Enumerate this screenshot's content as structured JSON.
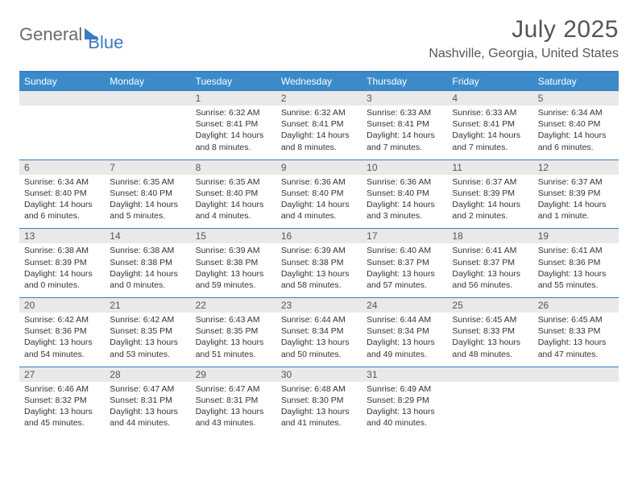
{
  "brand": {
    "part1": "General",
    "part2": "Blue"
  },
  "title": {
    "month": "July 2025",
    "location": "Nashville, Georgia, United States"
  },
  "colors": {
    "accent": "#3a7bbf",
    "header_bg": "#3b8bca",
    "daynum_bg": "#e9e9e9",
    "text": "#333333",
    "muted": "#555555"
  },
  "day_headers": [
    "Sunday",
    "Monday",
    "Tuesday",
    "Wednesday",
    "Thursday",
    "Friday",
    "Saturday"
  ],
  "weeks": [
    [
      null,
      null,
      {
        "n": "1",
        "sr": "Sunrise: 6:32 AM",
        "ss": "Sunset: 8:41 PM",
        "d1": "Daylight: 14 hours",
        "d2": "and 8 minutes."
      },
      {
        "n": "2",
        "sr": "Sunrise: 6:32 AM",
        "ss": "Sunset: 8:41 PM",
        "d1": "Daylight: 14 hours",
        "d2": "and 8 minutes."
      },
      {
        "n": "3",
        "sr": "Sunrise: 6:33 AM",
        "ss": "Sunset: 8:41 PM",
        "d1": "Daylight: 14 hours",
        "d2": "and 7 minutes."
      },
      {
        "n": "4",
        "sr": "Sunrise: 6:33 AM",
        "ss": "Sunset: 8:41 PM",
        "d1": "Daylight: 14 hours",
        "d2": "and 7 minutes."
      },
      {
        "n": "5",
        "sr": "Sunrise: 6:34 AM",
        "ss": "Sunset: 8:40 PM",
        "d1": "Daylight: 14 hours",
        "d2": "and 6 minutes."
      }
    ],
    [
      {
        "n": "6",
        "sr": "Sunrise: 6:34 AM",
        "ss": "Sunset: 8:40 PM",
        "d1": "Daylight: 14 hours",
        "d2": "and 6 minutes."
      },
      {
        "n": "7",
        "sr": "Sunrise: 6:35 AM",
        "ss": "Sunset: 8:40 PM",
        "d1": "Daylight: 14 hours",
        "d2": "and 5 minutes."
      },
      {
        "n": "8",
        "sr": "Sunrise: 6:35 AM",
        "ss": "Sunset: 8:40 PM",
        "d1": "Daylight: 14 hours",
        "d2": "and 4 minutes."
      },
      {
        "n": "9",
        "sr": "Sunrise: 6:36 AM",
        "ss": "Sunset: 8:40 PM",
        "d1": "Daylight: 14 hours",
        "d2": "and 4 minutes."
      },
      {
        "n": "10",
        "sr": "Sunrise: 6:36 AM",
        "ss": "Sunset: 8:40 PM",
        "d1": "Daylight: 14 hours",
        "d2": "and 3 minutes."
      },
      {
        "n": "11",
        "sr": "Sunrise: 6:37 AM",
        "ss": "Sunset: 8:39 PM",
        "d1": "Daylight: 14 hours",
        "d2": "and 2 minutes."
      },
      {
        "n": "12",
        "sr": "Sunrise: 6:37 AM",
        "ss": "Sunset: 8:39 PM",
        "d1": "Daylight: 14 hours",
        "d2": "and 1 minute."
      }
    ],
    [
      {
        "n": "13",
        "sr": "Sunrise: 6:38 AM",
        "ss": "Sunset: 8:39 PM",
        "d1": "Daylight: 14 hours",
        "d2": "and 0 minutes."
      },
      {
        "n": "14",
        "sr": "Sunrise: 6:38 AM",
        "ss": "Sunset: 8:38 PM",
        "d1": "Daylight: 14 hours",
        "d2": "and 0 minutes."
      },
      {
        "n": "15",
        "sr": "Sunrise: 6:39 AM",
        "ss": "Sunset: 8:38 PM",
        "d1": "Daylight: 13 hours",
        "d2": "and 59 minutes."
      },
      {
        "n": "16",
        "sr": "Sunrise: 6:39 AM",
        "ss": "Sunset: 8:38 PM",
        "d1": "Daylight: 13 hours",
        "d2": "and 58 minutes."
      },
      {
        "n": "17",
        "sr": "Sunrise: 6:40 AM",
        "ss": "Sunset: 8:37 PM",
        "d1": "Daylight: 13 hours",
        "d2": "and 57 minutes."
      },
      {
        "n": "18",
        "sr": "Sunrise: 6:41 AM",
        "ss": "Sunset: 8:37 PM",
        "d1": "Daylight: 13 hours",
        "d2": "and 56 minutes."
      },
      {
        "n": "19",
        "sr": "Sunrise: 6:41 AM",
        "ss": "Sunset: 8:36 PM",
        "d1": "Daylight: 13 hours",
        "d2": "and 55 minutes."
      }
    ],
    [
      {
        "n": "20",
        "sr": "Sunrise: 6:42 AM",
        "ss": "Sunset: 8:36 PM",
        "d1": "Daylight: 13 hours",
        "d2": "and 54 minutes."
      },
      {
        "n": "21",
        "sr": "Sunrise: 6:42 AM",
        "ss": "Sunset: 8:35 PM",
        "d1": "Daylight: 13 hours",
        "d2": "and 53 minutes."
      },
      {
        "n": "22",
        "sr": "Sunrise: 6:43 AM",
        "ss": "Sunset: 8:35 PM",
        "d1": "Daylight: 13 hours",
        "d2": "and 51 minutes."
      },
      {
        "n": "23",
        "sr": "Sunrise: 6:44 AM",
        "ss": "Sunset: 8:34 PM",
        "d1": "Daylight: 13 hours",
        "d2": "and 50 minutes."
      },
      {
        "n": "24",
        "sr": "Sunrise: 6:44 AM",
        "ss": "Sunset: 8:34 PM",
        "d1": "Daylight: 13 hours",
        "d2": "and 49 minutes."
      },
      {
        "n": "25",
        "sr": "Sunrise: 6:45 AM",
        "ss": "Sunset: 8:33 PM",
        "d1": "Daylight: 13 hours",
        "d2": "and 48 minutes."
      },
      {
        "n": "26",
        "sr": "Sunrise: 6:45 AM",
        "ss": "Sunset: 8:33 PM",
        "d1": "Daylight: 13 hours",
        "d2": "and 47 minutes."
      }
    ],
    [
      {
        "n": "27",
        "sr": "Sunrise: 6:46 AM",
        "ss": "Sunset: 8:32 PM",
        "d1": "Daylight: 13 hours",
        "d2": "and 45 minutes."
      },
      {
        "n": "28",
        "sr": "Sunrise: 6:47 AM",
        "ss": "Sunset: 8:31 PM",
        "d1": "Daylight: 13 hours",
        "d2": "and 44 minutes."
      },
      {
        "n": "29",
        "sr": "Sunrise: 6:47 AM",
        "ss": "Sunset: 8:31 PM",
        "d1": "Daylight: 13 hours",
        "d2": "and 43 minutes."
      },
      {
        "n": "30",
        "sr": "Sunrise: 6:48 AM",
        "ss": "Sunset: 8:30 PM",
        "d1": "Daylight: 13 hours",
        "d2": "and 41 minutes."
      },
      {
        "n": "31",
        "sr": "Sunrise: 6:49 AM",
        "ss": "Sunset: 8:29 PM",
        "d1": "Daylight: 13 hours",
        "d2": "and 40 minutes."
      },
      null,
      null
    ]
  ]
}
